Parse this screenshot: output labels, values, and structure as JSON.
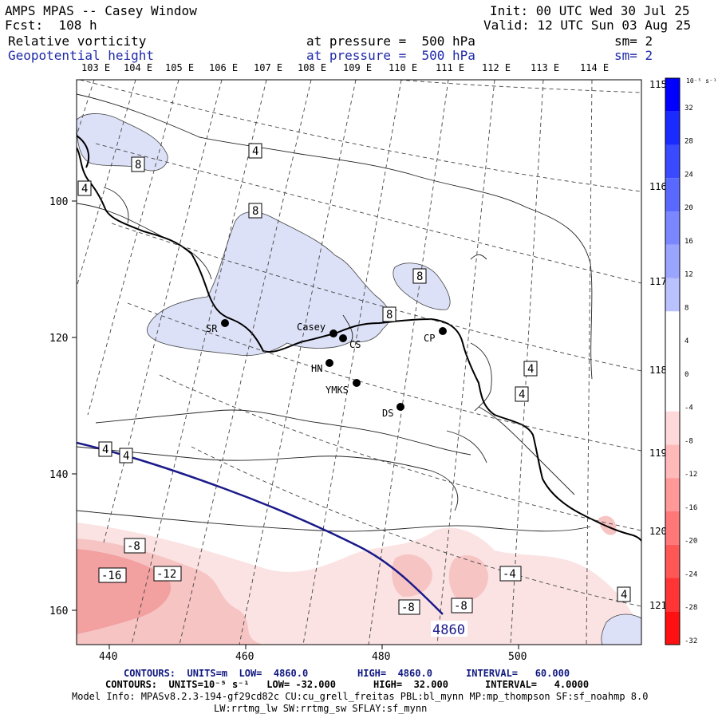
{
  "header": {
    "title": "AMPS MPAS -- Casey Window",
    "init": "Init: 00 UTC Wed 30 Jul 25",
    "fcst": "Fcst:  108 h",
    "valid": "Valid: 12 UTC Sun 03 Aug 25",
    "field1_name": "Relative vorticity",
    "field1_level": "at pressure =  500 hPa",
    "field1_sm": "sm= 2",
    "field2_name": "Geopotential height",
    "field2_level": "at pressure =  500 hPa",
    "field2_sm": "sm= 2"
  },
  "map": {
    "lon_top_labels": [
      "103 E",
      "104 E",
      "105 E",
      "106 E",
      "107 E",
      "108 E",
      "109 E",
      "110 E",
      "111 E",
      "112 E",
      "113 E",
      "114 E"
    ],
    "lon_right_labels": [
      "115 E",
      "116 E",
      "117 E",
      "118 E",
      "119 E",
      "120 E",
      "121 E"
    ],
    "y_axis_ticks": [
      "100",
      "120",
      "140",
      "160"
    ],
    "x_axis_ticks": [
      "440",
      "460",
      "480",
      "500"
    ],
    "stations": [
      {
        "id": "SR",
        "label": "SR"
      },
      {
        "id": "Casey",
        "label": "Casey"
      },
      {
        "id": "CS",
        "label": "CS"
      },
      {
        "id": "HN",
        "label": "HN"
      },
      {
        "id": "YMKS",
        "label": "YMKS"
      },
      {
        "id": "CP",
        "label": "CP"
      },
      {
        "id": "DS",
        "label": "DS"
      }
    ],
    "contour_labels": [
      "4",
      "4",
      "8",
      "8",
      "8",
      "8",
      "4",
      "4",
      "4",
      "4",
      "-8",
      "-16",
      "-12",
      "-8",
      "-8",
      "-4",
      "4"
    ],
    "height_contour_label": "4860",
    "colors": {
      "height_line": "#1a1a8a",
      "pos_fill": "#dde1f7",
      "neg_fill_light": "#fbe0e0",
      "neg_fill_mid": "#f6bcbc",
      "neg_fill_dark": "#f09090"
    }
  },
  "colorbar": {
    "unit": "10⁻⁵ s⁻¹",
    "ticks": [
      "32",
      "28",
      "24",
      "20",
      "16",
      "12",
      "8",
      "4",
      "0",
      "-4",
      "-8",
      "-12",
      "-16",
      "-20",
      "-24",
      "-28",
      "-32"
    ],
    "colors": [
      "#0000ff",
      "#1a2bff",
      "#3a4aff",
      "#5968ff",
      "#7a87ff",
      "#9aa5ff",
      "#b9c1ff",
      "#ffffff",
      "#ffffff",
      "#ffffff",
      "#ffd9d9",
      "#ffb9b9",
      "#ff9898",
      "#ff7777",
      "#ff5656",
      "#ff3434",
      "#ff1111"
    ]
  },
  "footer": {
    "line1_contours": "CONTOURS:  UNITS=m  LOW=  4860.0",
    "line1_high": "HIGH=  4860.0",
    "line1_interval": "INTERVAL=   60.000",
    "line2_contours": "CONTOURS:  UNITS=10⁻⁵ s⁻¹   LOW= -32.000",
    "line2_high": "HIGH=  32.000",
    "line2_interval": "INTERVAL=   4.0000",
    "model_info": "Model Info: MPASv8.2.3-194-gf29cd82c CU:cu_grell_freitas PBL:bl_mynn MP:mp_thompson SF:sf_noahmp 8.0",
    "model_info2": "LW:rrtmg_lw SW:rrtmg_sw SFLAY:sf_mynn"
  }
}
